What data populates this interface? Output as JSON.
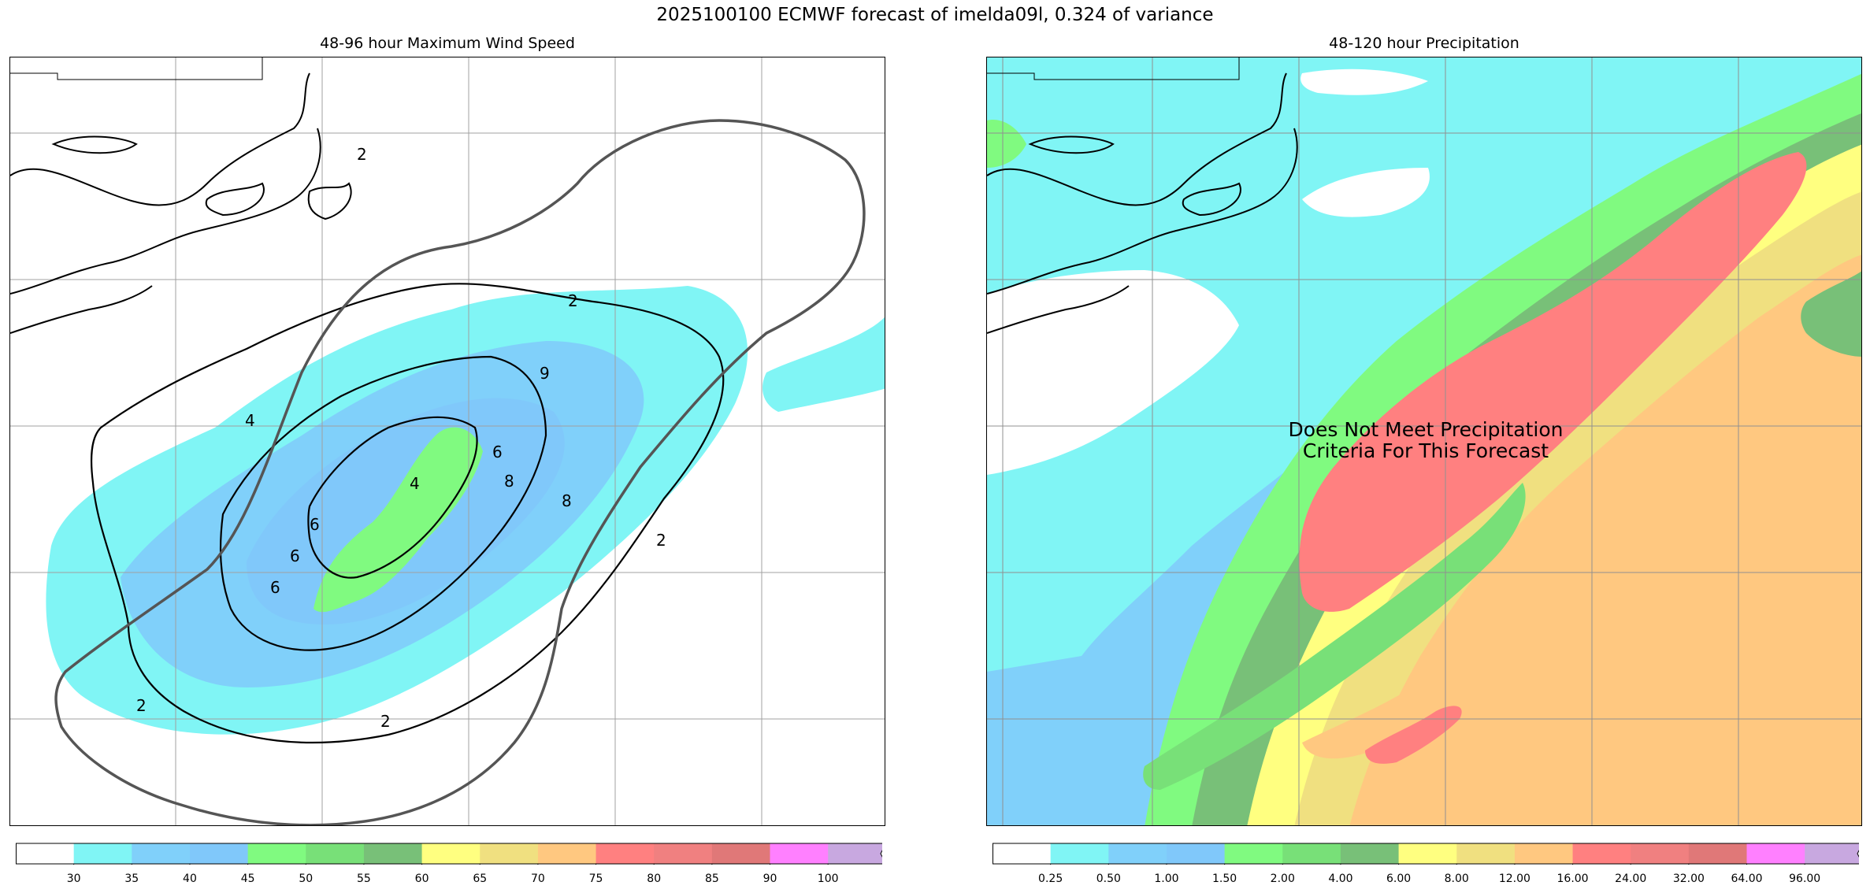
{
  "suptitle": "2025100100 ECMWF forecast of imelda09l, 0.324 of variance",
  "left_panel": {
    "title": "48-96 hour Maximum Wind Speed",
    "contour_labels": [
      "2",
      "9",
      "4",
      "6",
      "8",
      "4",
      "6",
      "6",
      "6",
      "8",
      "2",
      "2",
      "2",
      "2"
    ],
    "colorbar": {
      "ticks": [
        "30",
        "35",
        "40",
        "45",
        "50",
        "55",
        "60",
        "65",
        "70",
        "75",
        "80",
        "85",
        "90",
        "100"
      ],
      "colors": [
        "#ffffff",
        "#80f5f5",
        "#80d0fa",
        "#80c8fa",
        "#80fa80",
        "#78e078",
        "#78c078",
        "#ffff80",
        "#f0e080",
        "#ffc880",
        "#ff8080",
        "#f08080",
        "#e07878",
        "#ff80ff",
        "#c8a8e0"
      ]
    }
  },
  "right_panel": {
    "title": "48-120 hour Precipitation",
    "annotation": "Does Not Meet Precipitation\nCriteria For This Forecast",
    "colorbar": {
      "ticks": [
        "0.25",
        "0.50",
        "1.00",
        "1.50",
        "2.00",
        "4.00",
        "6.00",
        "8.00",
        "12.00",
        "16.00",
        "24.00",
        "32.00",
        "64.00",
        "96.00"
      ],
      "colors": [
        "#ffffff",
        "#80f5f5",
        "#80d0fa",
        "#80c8fa",
        "#80fa80",
        "#78e078",
        "#78c078",
        "#ffff80",
        "#f0e080",
        "#ffc880",
        "#ff8080",
        "#f08080",
        "#e07878",
        "#ff80ff",
        "#c8a8e0"
      ]
    }
  }
}
